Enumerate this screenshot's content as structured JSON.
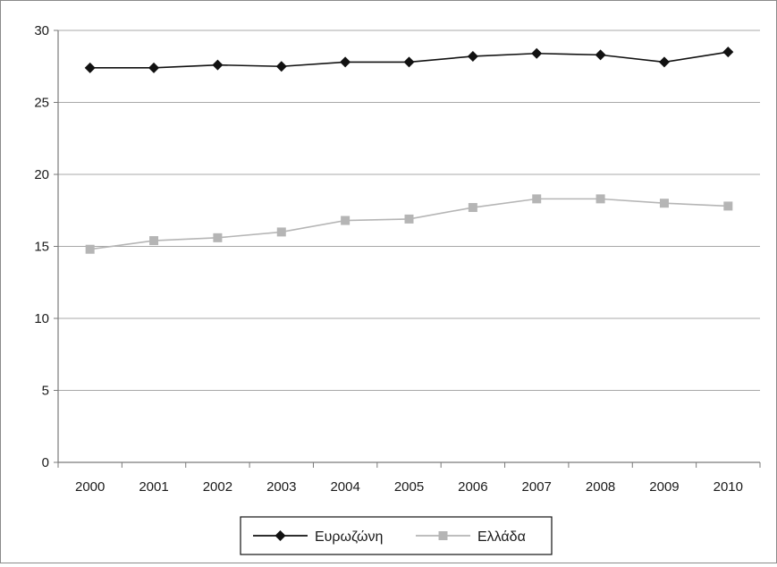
{
  "chart_data": {
    "type": "line",
    "title": "",
    "xlabel": "",
    "ylabel": "",
    "categories": [
      "2000",
      "2001",
      "2002",
      "2003",
      "2004",
      "2005",
      "2006",
      "2007",
      "2008",
      "2009",
      "2010"
    ],
    "ylim": [
      0,
      30
    ],
    "yticks": [
      0,
      5,
      10,
      15,
      20,
      25,
      30
    ],
    "grid": true,
    "legend_position": "bottom",
    "series": [
      {
        "name": "Ευρωζώνη",
        "color": "#111111",
        "marker": "diamond",
        "values": [
          27.4,
          27.4,
          27.6,
          27.5,
          27.8,
          27.8,
          28.2,
          28.4,
          28.3,
          27.8,
          28.5
        ]
      },
      {
        "name": "Ελλάδα",
        "color": "#b5b5b5",
        "marker": "square",
        "values": [
          14.8,
          15.4,
          15.6,
          16.0,
          16.8,
          16.9,
          17.7,
          18.3,
          18.3,
          18.0,
          17.8
        ]
      }
    ]
  }
}
